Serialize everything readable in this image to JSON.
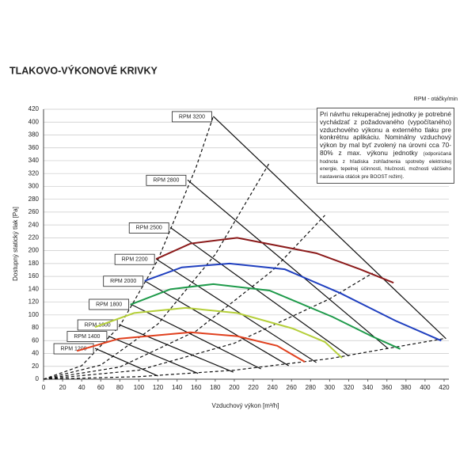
{
  "chart_data": {
    "type": "line",
    "title": "TLAKOVO-VÝKONOVÉ KRIVKY",
    "rpm_note": "RPM - otáčky/min",
    "x_label": "Vzduchový výkon [m³/h]",
    "y_label": "Dostupný statický tlak [Pa]",
    "note": "Pri návrhu rekuperačnej jednotky je potrebné vychádzať z požadovaného (vypočítaného) vzduchového výkonu a externého tlaku pre konkrétnu aplikáciu. Nominálny vzduchový výkon by mal byť zvolený na úrovni cca 70-80% z max. výkonu jednotky",
    "note_small": "(odporúčaná hodnota z hľadiska zohľadnenia spotreby elektrickej energie, tepelnej účinnosti, hlučnosti, možnosti väčšieho nastavenia otáčok pre BOOST režim).",
    "xlim": [
      0,
      425
    ],
    "ylim": [
      0,
      420
    ],
    "xticks": [
      0,
      20,
      40,
      60,
      80,
      100,
      120,
      140,
      160,
      180,
      200,
      220,
      240,
      260,
      280,
      300,
      320,
      340,
      360,
      380,
      400,
      420
    ],
    "yticks": [
      0,
      20,
      40,
      60,
      80,
      100,
      120,
      140,
      160,
      180,
      200,
      220,
      240,
      260,
      280,
      300,
      320,
      340,
      360,
      380,
      400,
      420
    ],
    "grid": true,
    "rpm_lines": [
      {
        "name": "RPM 3200",
        "x": [
          178,
          422
        ],
        "y": [
          409,
          63
        ]
      },
      {
        "name": "RPM 2800",
        "x": [
          151,
          361
        ],
        "y": [
          310,
          48
        ]
      },
      {
        "name": "RPM 2500",
        "x": [
          133,
          320
        ],
        "y": [
          236,
          36
        ]
      },
      {
        "name": "RPM 2200",
        "x": [
          118,
          286
        ],
        "y": [
          187,
          26
        ]
      },
      {
        "name": "RPM 2000",
        "x": [
          106,
          257
        ],
        "y": [
          153,
          21
        ]
      },
      {
        "name": "RPM 1800",
        "x": [
          91,
          228
        ],
        "y": [
          117,
          16
        ]
      },
      {
        "name": "RPM 1600",
        "x": [
          79,
          199
        ],
        "y": [
          85,
          11
        ]
      },
      {
        "name": "RPM 1400",
        "x": [
          68,
          162
        ],
        "y": [
          67,
          9
        ]
      },
      {
        "name": "RPM 1200",
        "x": [
          54,
          120
        ],
        "y": [
          48,
          5
        ]
      }
    ],
    "series": [
      {
        "color": "#8b1a1a",
        "x": [
          118,
          154,
          203,
          286,
          332,
          367
        ],
        "y": [
          187,
          211,
          220,
          196,
          171,
          150
        ]
      },
      {
        "color": "#1f3fbf",
        "x": [
          106,
          145,
          195,
          253,
          311,
          369,
          417
        ],
        "y": [
          153,
          174,
          180,
          171,
          134,
          91,
          60
        ]
      },
      {
        "color": "#1e9a4a",
        "x": [
          91,
          133,
          178,
          237,
          303,
          344,
          374
        ],
        "y": [
          116,
          140,
          148,
          138,
          97,
          67,
          47
        ]
      },
      {
        "color": "#b5cf3a",
        "x": [
          54,
          95,
          149,
          203,
          261,
          295,
          313
        ],
        "y": [
          81,
          103,
          111,
          103,
          79,
          58,
          33
        ]
      },
      {
        "color": "#e0401e",
        "x": [
          35,
          79,
          154,
          203,
          245,
          274
        ],
        "y": [
          44,
          63,
          73,
          67,
          52,
          27
        ]
      }
    ],
    "system_curves": [
      {
        "x": [
          0,
          40,
          80,
          120,
          160,
          178
        ],
        "y": [
          0,
          21,
          83,
          186,
          330,
          409
        ]
      },
      {
        "x": [
          0,
          60,
          120,
          180,
          237
        ],
        "y": [
          0,
          22,
          86,
          194,
          337
        ]
      },
      {
        "x": [
          0,
          80,
          160,
          240,
          295
        ],
        "y": [
          0,
          19,
          75,
          169,
          255
        ]
      },
      {
        "x": [
          0,
          100,
          200,
          300,
          345
        ],
        "y": [
          0,
          14,
          56,
          125,
          165
        ]
      },
      {
        "x": [
          0,
          100,
          200,
          300,
          419
        ],
        "y": [
          0,
          4,
          14,
          32,
          63
        ]
      }
    ]
  }
}
